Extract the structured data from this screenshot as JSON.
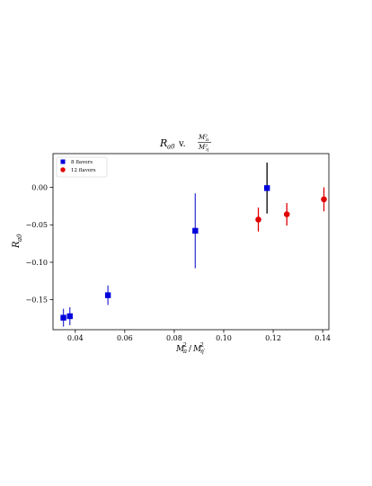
{
  "chart_data": {
    "type": "scatter",
    "title_main": "R",
    "title_sub": "a0",
    "title_joiner": "v.",
    "title_frac_num": "M²",
    "title_frac_num_sub": "π",
    "title_frac_den": "M²",
    "title_frac_den_sub": "η′",
    "xlabel": "M²π/M²η′",
    "xlabel_parts": {
      "a": "M",
      "a_sup": "2",
      "a_sub": "π",
      "slash": "/",
      "b": "M",
      "b_sup": "2",
      "b_sub": "η′"
    },
    "ylabel": "Ra0",
    "ylabel_parts": {
      "main": "R",
      "sub": "a0"
    },
    "xlim": [
      0.031,
      0.1425
    ],
    "ylim": [
      -0.19,
      0.045
    ],
    "x_ticks": [
      0.04,
      0.06,
      0.08,
      0.1,
      0.12,
      0.14
    ],
    "x_tick_labels": [
      "0.04",
      "0.06",
      "0.08",
      "0.10",
      "0.12",
      "0.14"
    ],
    "y_ticks": [
      -0.15,
      -0.1,
      -0.05,
      0.0
    ],
    "y_tick_labels": [
      "−0.15",
      "−0.10",
      "−0.05",
      "0.00"
    ],
    "grid": false,
    "legend_position": "top-left",
    "series": [
      {
        "name": "8 flavors",
        "marker": "square",
        "color": "#0000dd",
        "points": [
          {
            "x": 0.0352,
            "y": -0.174,
            "err": 0.012,
            "err_color": "#3a3ad6"
          },
          {
            "x": 0.0378,
            "y": -0.172,
            "err": 0.012,
            "err_color": "#3a3ad6"
          },
          {
            "x": 0.0532,
            "y": -0.144,
            "err": 0.013,
            "err_color": "#3a3ad6"
          },
          {
            "x": 0.0885,
            "y": -0.058,
            "err": 0.05,
            "err_color": "#3a3ad6"
          },
          {
            "x": 0.1175,
            "y": -0.001,
            "err": 0.034,
            "err_color": "#000000"
          }
        ]
      },
      {
        "name": "12 flavors",
        "marker": "circle",
        "color": "#e00000",
        "points": [
          {
            "x": 0.114,
            "y": -0.043,
            "err": 0.016,
            "err_color": "#e00000"
          },
          {
            "x": 0.1255,
            "y": -0.036,
            "err": 0.015,
            "err_color": "#e00000"
          },
          {
            "x": 0.1405,
            "y": -0.016,
            "err": 0.016,
            "err_color": "#e00000"
          }
        ]
      }
    ]
  }
}
